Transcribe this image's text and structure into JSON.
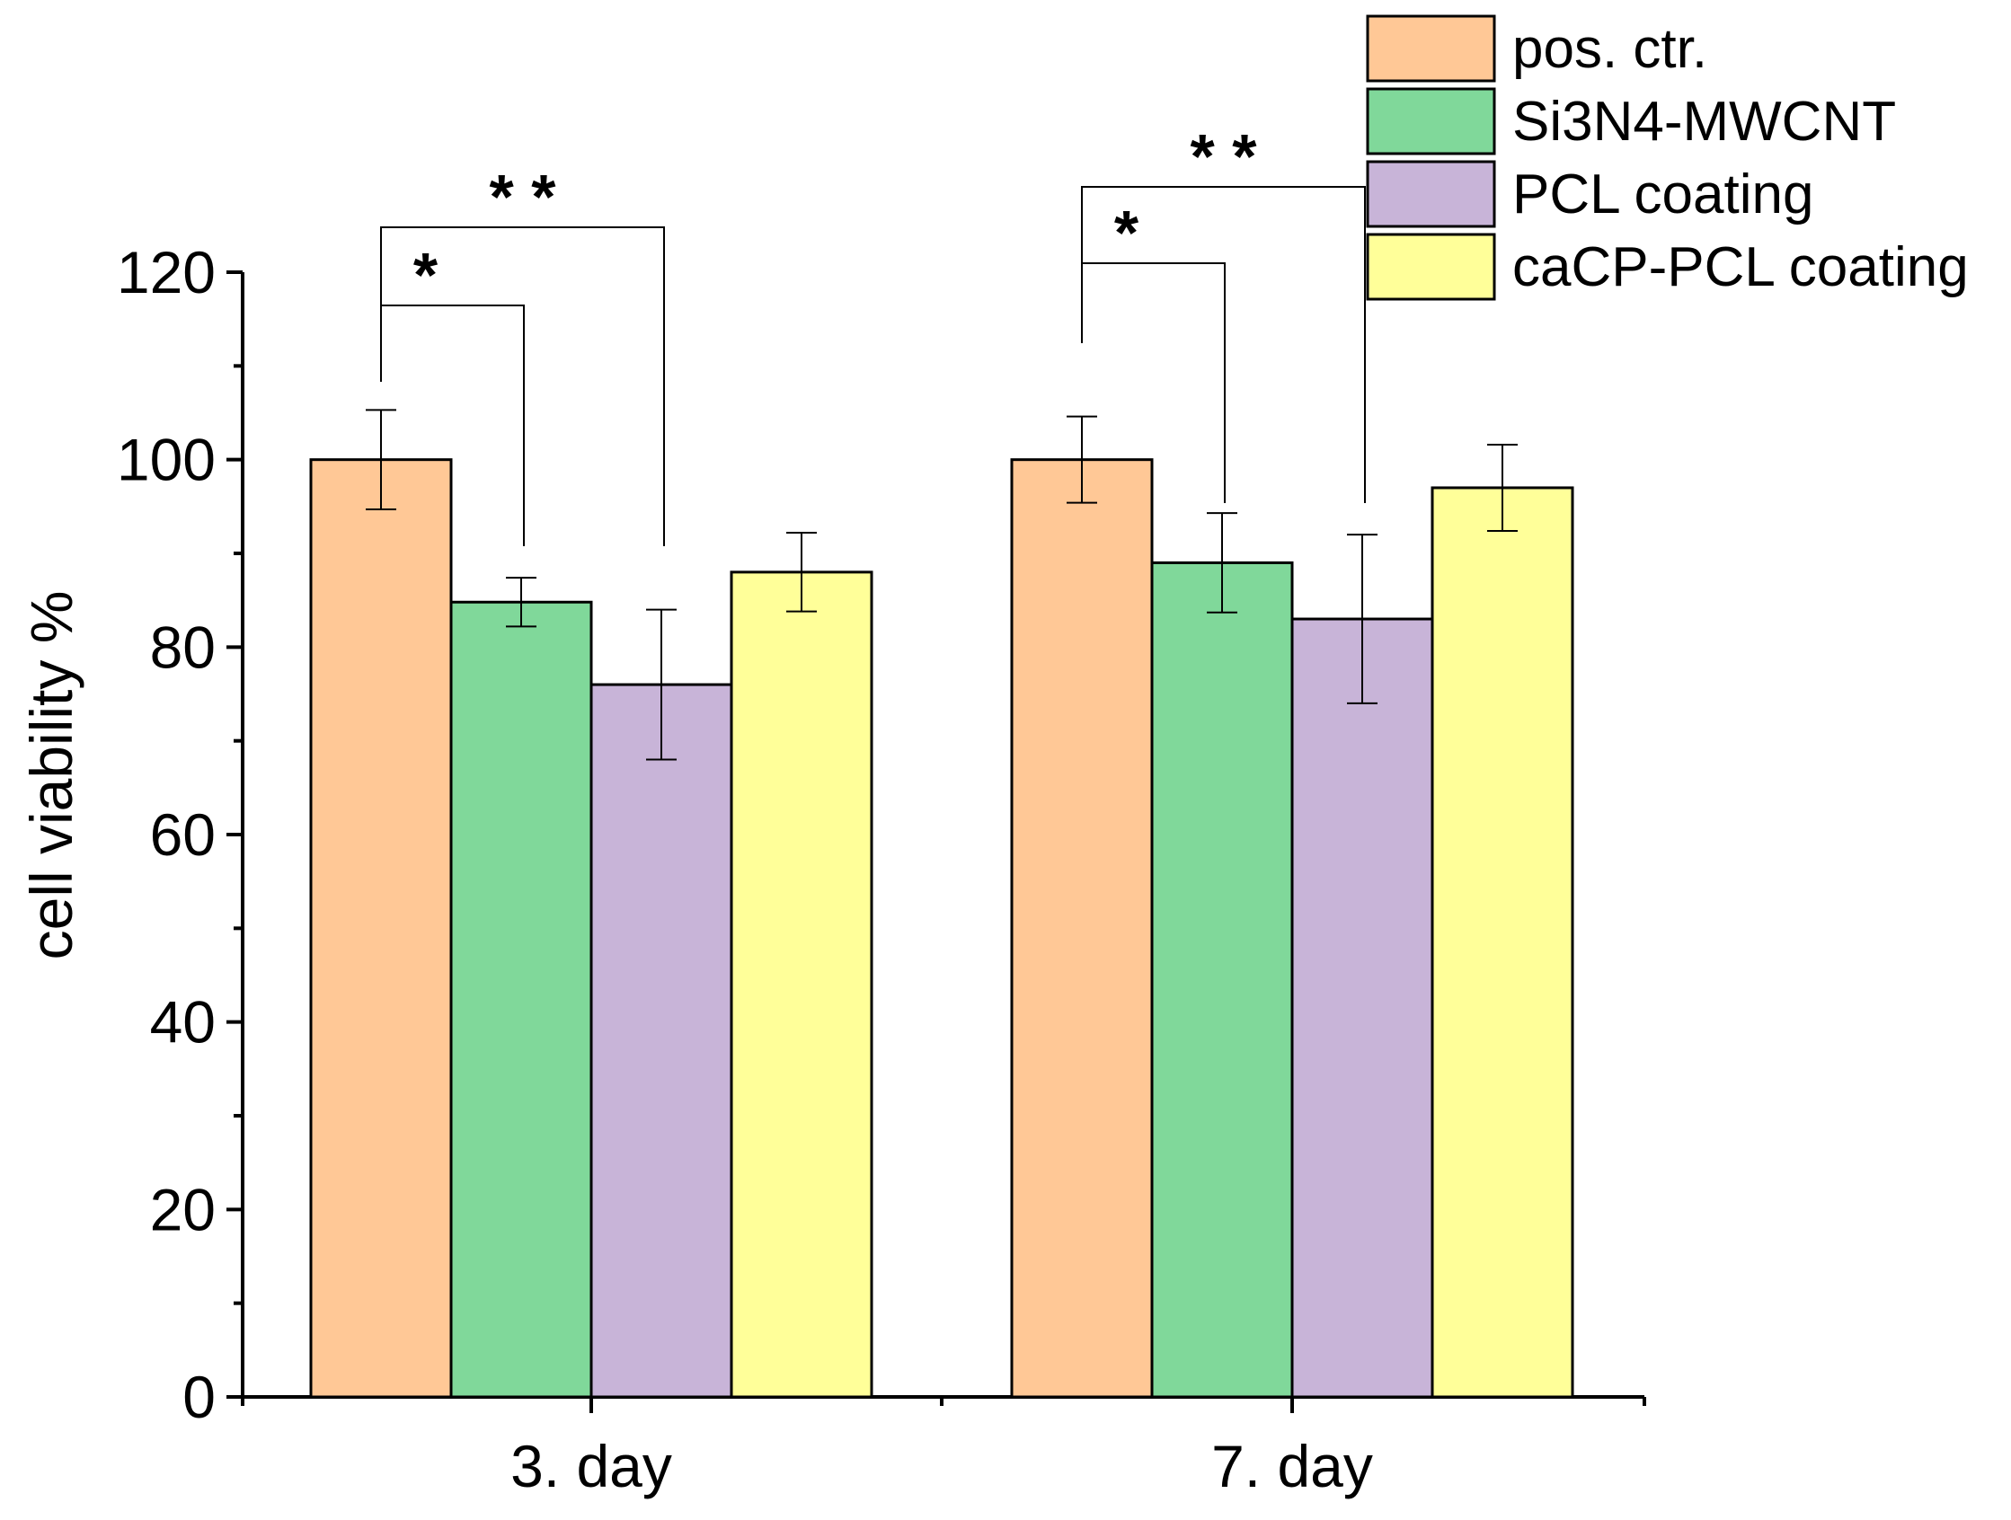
{
  "chart_data": {
    "type": "bar",
    "title": "",
    "xlabel": "",
    "ylabel": "cell viability %",
    "categories": [
      "3. day",
      "7. day"
    ],
    "ylim": [
      0,
      120
    ],
    "yticks": [
      0,
      20,
      40,
      60,
      80,
      100,
      120
    ],
    "legend_position": "top-right",
    "series": [
      {
        "name": "pos. ctr.",
        "color": "#FFC896",
        "values": [
          100,
          100
        ],
        "errors": [
          5.3,
          4.6
        ]
      },
      {
        "name": "Si3N4-MWCNT",
        "color": "#80D89A",
        "values": [
          84.8,
          89
        ],
        "errors": [
          2.6,
          5.3
        ]
      },
      {
        "name": "PCL coating",
        "color": "#C8B4D8",
        "values": [
          76,
          83
        ],
        "errors": [
          8,
          9
        ]
      },
      {
        "name": "caCP-PCL coating",
        "color": "#FFFF99",
        "values": [
          88,
          97
        ],
        "errors": [
          4.2,
          4.6
        ]
      }
    ],
    "significance": [
      {
        "category": 0,
        "from_series": 0,
        "to_series": 1,
        "label": "*"
      },
      {
        "category": 0,
        "from_series": 0,
        "to_series": 2,
        "label": "* *"
      },
      {
        "category": 1,
        "from_series": 0,
        "to_series": 1,
        "label": "*"
      },
      {
        "category": 1,
        "from_series": 0,
        "to_series": 2,
        "label": "* *"
      }
    ]
  }
}
